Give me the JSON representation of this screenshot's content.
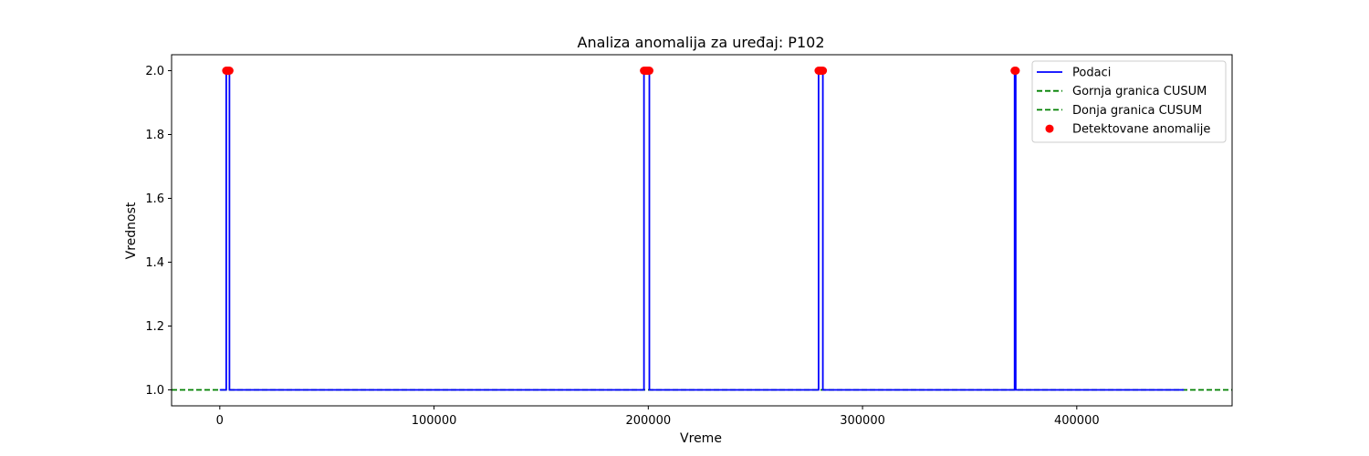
{
  "chart_data": {
    "type": "line",
    "title": "Analiza anomalija za uređaj: P102",
    "xlabel": "Vreme",
    "ylabel": "Vrednost",
    "xlim": [
      -22500,
      472500
    ],
    "ylim": [
      0.95,
      2.05
    ],
    "x_ticks": [
      0,
      100000,
      200000,
      300000,
      400000
    ],
    "x_tick_labels": [
      "0",
      "100000",
      "200000",
      "300000",
      "400000"
    ],
    "y_ticks": [
      1.0,
      1.2,
      1.4,
      1.6,
      1.8,
      2.0
    ],
    "y_tick_labels": [
      "1.0",
      "1.2",
      "1.4",
      "1.6",
      "1.8",
      "2.0"
    ],
    "grid": false,
    "legend_position": "top-right",
    "x_range": [
      0,
      450000
    ],
    "series": [
      {
        "name": "Podaci",
        "kind": "line",
        "color": "#0000ff",
        "baseline": 1.0,
        "spikes": [
          {
            "x_start": 3000,
            "x_end": 4500,
            "value": 2.0
          },
          {
            "x_start": 198000,
            "x_end": 200500,
            "value": 2.0
          },
          {
            "x_start": 279500,
            "x_end": 281500,
            "value": 2.0
          },
          {
            "x_start": 371000,
            "x_end": 371500,
            "value": 2.0
          }
        ]
      },
      {
        "name": "Gornja granica CUSUM",
        "kind": "hline",
        "value": 1.0,
        "color": "#008000",
        "dash": true
      },
      {
        "name": "Donja granica CUSUM",
        "kind": "hline",
        "value": 1.0,
        "color": "#008000",
        "dash": true
      },
      {
        "name": "Detektovane anomalije",
        "kind": "scatter",
        "color": "#ff0000",
        "points": [
          {
            "x": 3000,
            "y": 2.0
          },
          {
            "x": 3500,
            "y": 2.0
          },
          {
            "x": 4000,
            "y": 2.0
          },
          {
            "x": 4500,
            "y": 2.0
          },
          {
            "x": 198000,
            "y": 2.0
          },
          {
            "x": 198500,
            "y": 2.0
          },
          {
            "x": 199000,
            "y": 2.0
          },
          {
            "x": 199500,
            "y": 2.0
          },
          {
            "x": 200000,
            "y": 2.0
          },
          {
            "x": 200500,
            "y": 2.0
          },
          {
            "x": 279500,
            "y": 2.0
          },
          {
            "x": 280000,
            "y": 2.0
          },
          {
            "x": 280500,
            "y": 2.0
          },
          {
            "x": 281000,
            "y": 2.0
          },
          {
            "x": 281500,
            "y": 2.0
          },
          {
            "x": 371000,
            "y": 2.0
          },
          {
            "x": 371500,
            "y": 2.0
          }
        ]
      }
    ]
  }
}
